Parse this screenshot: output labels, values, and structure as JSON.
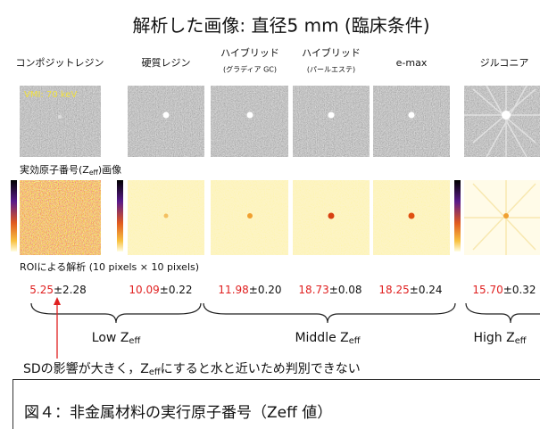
{
  "title": "解析した画像: 直径5 mm (臨床条件)",
  "columns": [
    {
      "label": "コンポジットレジン",
      "mean": "5.25",
      "sd": "2.28"
    },
    {
      "label": "硬質レジン",
      "mean": "10.09",
      "sd": "0.22"
    },
    {
      "label": "ハイブリッド",
      "sub": "(グラディア GC)",
      "mean": "11.98",
      "sd": "0.20"
    },
    {
      "label": "ハイブリッド",
      "sub": "(パールエステ)",
      "mean": "18.73",
      "sd": "0.08"
    },
    {
      "label": "e-max",
      "mean": "18.25",
      "sd": "0.24"
    },
    {
      "label": "ジルコニア",
      "mean": "15.70",
      "sd": "0.32"
    }
  ],
  "pm": "±",
  "vmi_label": "VMI: 70 keV",
  "zeff_section": [
    "実効原子番号(Z",
    "eff",
    ")画像"
  ],
  "roi_section": "ROIによる解析 (10 pixels × 10 pixels)",
  "groups": [
    [
      "Low Z",
      "eff"
    ],
    [
      "Middle Z",
      "eff"
    ],
    [
      "High Z",
      "eff"
    ]
  ],
  "note": [
    "SDの影響が大きく，Z",
    "eff",
    "にすると水と近いため判別できない"
  ],
  "caption": "図４：非金属材料の実行原子番号（Zeff 値）"
}
